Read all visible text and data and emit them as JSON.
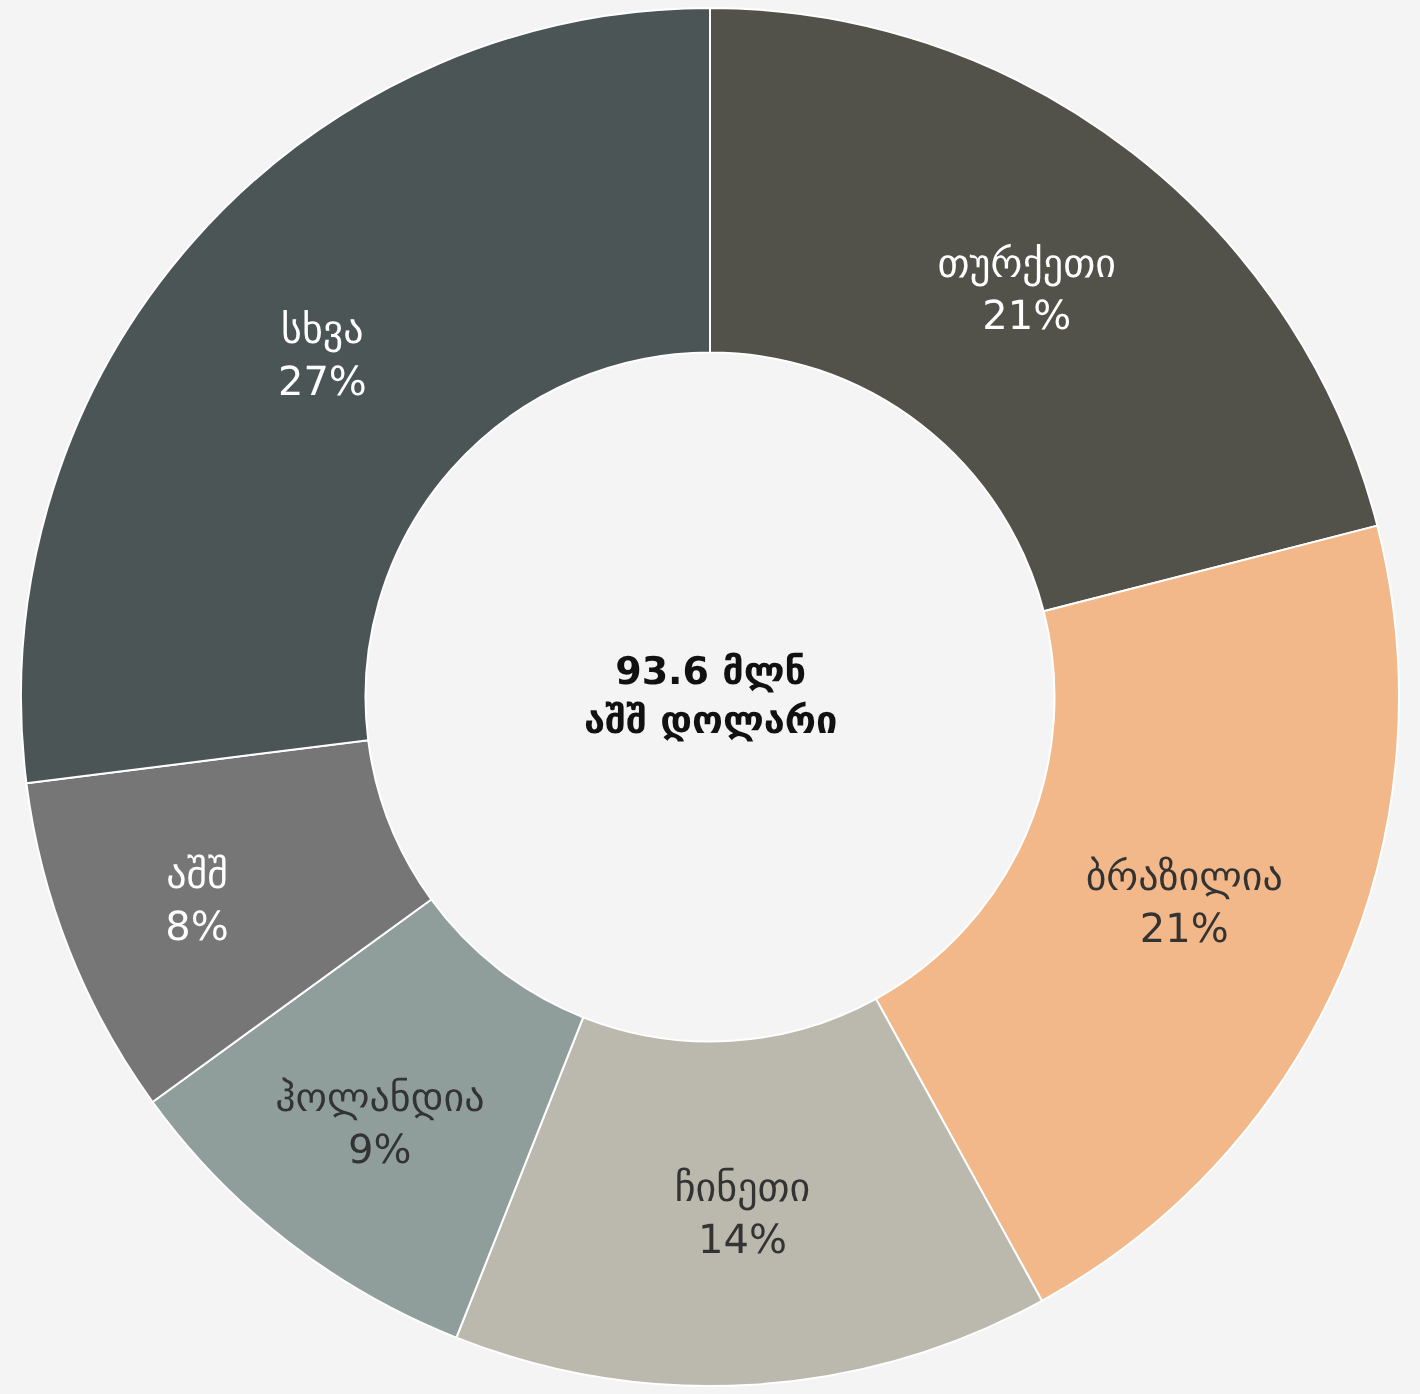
{
  "chart_data": {
    "type": "donut",
    "categories": [
      "თურქეთი",
      "ბრაზილია",
      "ჩინეთი",
      "ჰოლანდია",
      "აშშ",
      "სხვა"
    ],
    "values": [
      21,
      21,
      14,
      9,
      8,
      27
    ],
    "value_labels": [
      "21%",
      "21%",
      "14%",
      "9%",
      "8%",
      "27%"
    ],
    "colors": [
      "#52524a",
      "#f3b889",
      "#bbb8ae",
      "#909e9b",
      "#777677",
      "#4c5556"
    ],
    "annotations": [
      "93.6 მლნ\nაშშ დოლარი"
    ],
    "legend": false
  }
}
